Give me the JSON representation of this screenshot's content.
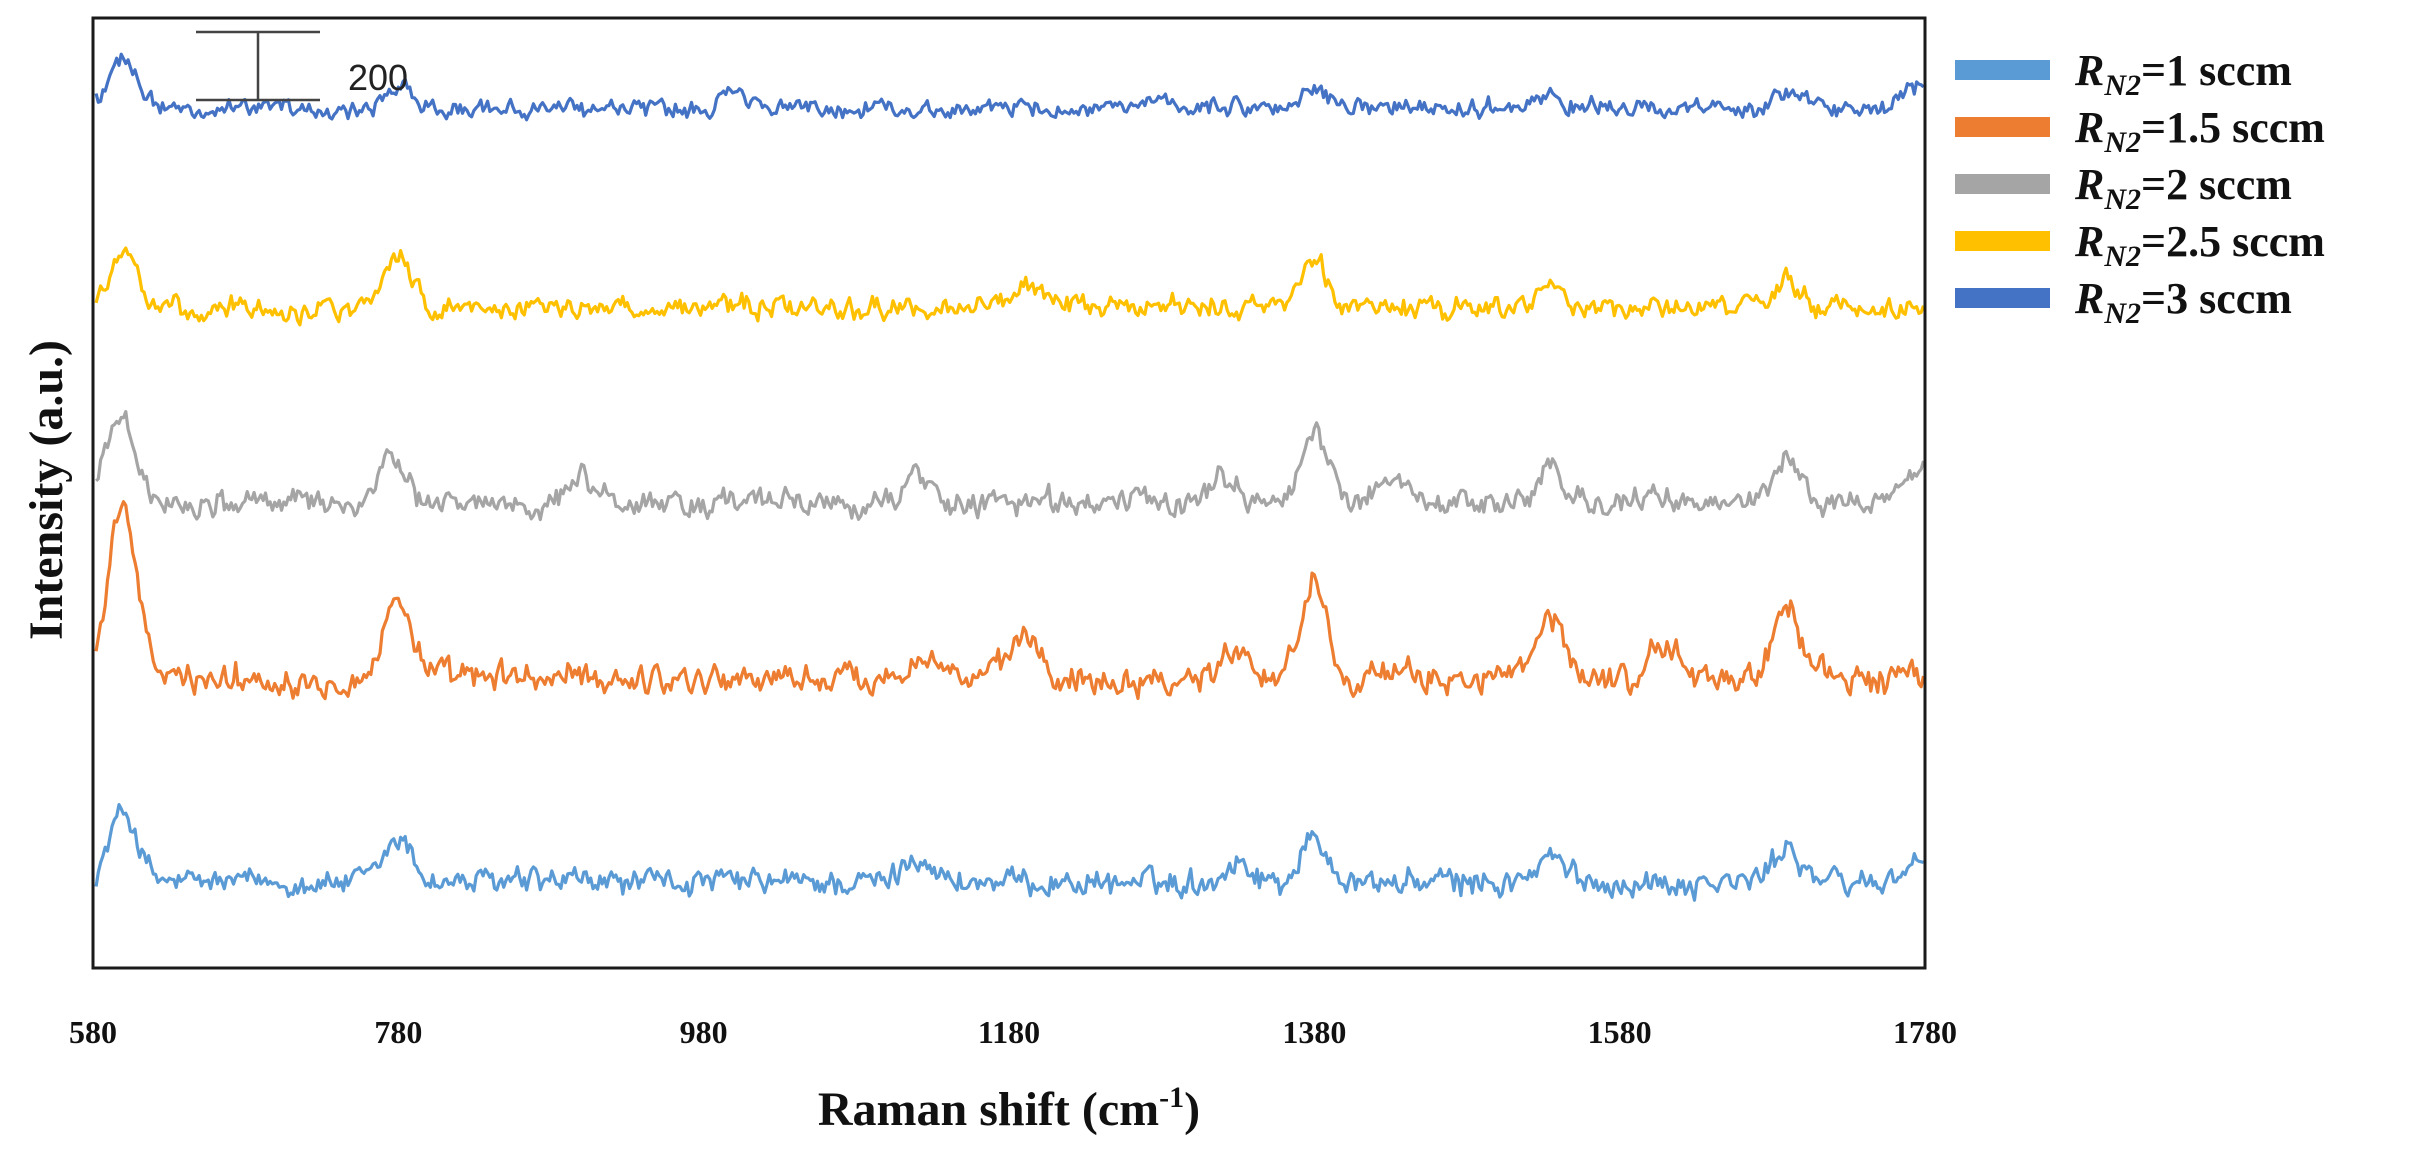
{
  "chart_data": {
    "type": "line",
    "title": "",
    "xlabel_main": "Raman shift (cm",
    "xlabel_sup": "-1",
    "xlabel_close": ")",
    "ylabel": "Intensity (a.u.)",
    "x_ticks": [
      580,
      780,
      980,
      1180,
      1380,
      1580,
      1780
    ],
    "x_tick_labels": [
      "580",
      "780",
      "980",
      "1180",
      "1380",
      "1580",
      "1780"
    ],
    "xlim": [
      580,
      1780
    ],
    "ylim": [
      0,
      1000
    ],
    "y_ticks_shown": false,
    "grid": false,
    "stacked_offset": true,
    "scale_bar": {
      "value": 200,
      "label": "200"
    },
    "legend_position": "right",
    "common_peaks_cm1": [
      600,
      780,
      1190,
      1380,
      1535,
      1690
    ],
    "series": [
      {
        "legend_prefix": "R",
        "legend_sub": "N2",
        "legend_suffix": "=1 sccm",
        "name": "R_N2=1 sccm",
        "color": "#5B9BD5",
        "baseline": 90,
        "noise": 16,
        "peaks": [
          [
            600,
            75
          ],
          [
            780,
            45
          ],
          [
            1120,
            30
          ],
          [
            1330,
            22
          ],
          [
            1380,
            45
          ],
          [
            1535,
            25
          ],
          [
            1690,
            38
          ],
          [
            1775,
            25
          ]
        ]
      },
      {
        "legend_prefix": "R",
        "legend_sub": "N2",
        "legend_suffix": "=1.5 sccm",
        "name": "R_N2=1.5 sccm",
        "color": "#ED7D31",
        "baseline": 305,
        "noise": 18,
        "peaks": [
          [
            600,
            180
          ],
          [
            780,
            85
          ],
          [
            1125,
            30
          ],
          [
            1190,
            45
          ],
          [
            1330,
            35
          ],
          [
            1380,
            100
          ],
          [
            1535,
            60
          ],
          [
            1610,
            35
          ],
          [
            1690,
            75
          ]
        ]
      },
      {
        "legend_prefix": "R",
        "legend_sub": "N2",
        "legend_suffix": "=2 sccm",
        "name": "R_N2=2 sccm",
        "color": "#A5A5A5",
        "baseline": 490,
        "noise": 16,
        "peaks": [
          [
            598,
            95
          ],
          [
            775,
            40
          ],
          [
            900,
            25
          ],
          [
            1120,
            25
          ],
          [
            1320,
            30
          ],
          [
            1380,
            70
          ],
          [
            1430,
            30
          ],
          [
            1535,
            30
          ],
          [
            1690,
            45
          ],
          [
            1775,
            40
          ]
        ]
      },
      {
        "legend_prefix": "R",
        "legend_sub": "N2",
        "legend_suffix": "=2.5 sccm",
        "name": "R_N2=2.5 sccm",
        "color": "#FFC000",
        "baseline": 695,
        "noise": 13,
        "peaks": [
          [
            600,
            55
          ],
          [
            780,
            55
          ],
          [
            1190,
            25
          ],
          [
            1380,
            50
          ],
          [
            1535,
            25
          ],
          [
            1690,
            28
          ]
        ]
      },
      {
        "legend_prefix": "R",
        "legend_sub": "N2",
        "legend_suffix": "=3 sccm",
        "name": "R_N2=3 sccm",
        "color": "#4472C4",
        "baseline": 905,
        "noise": 11,
        "peaks": [
          [
            600,
            55
          ],
          [
            780,
            25
          ],
          [
            1000,
            15
          ],
          [
            1380,
            20
          ],
          [
            1535,
            15
          ],
          [
            1690,
            15
          ],
          [
            1775,
            20
          ]
        ]
      }
    ]
  }
}
